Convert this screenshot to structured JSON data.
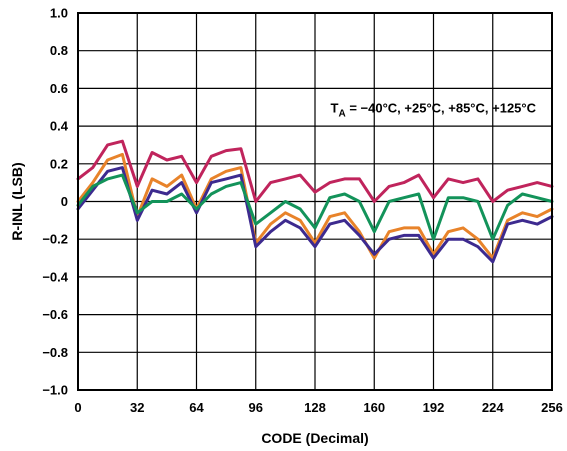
{
  "chart_data": {
    "type": "line",
    "title": "",
    "xlabel": "CODE (Decimal)",
    "ylabel": "R-INL (LSB)",
    "xlim": [
      0,
      256
    ],
    "ylim": [
      -1.0,
      1.0
    ],
    "xticks": [
      "0",
      "32",
      "64",
      "96",
      "128",
      "160",
      "192",
      "224",
      "256"
    ],
    "yticks": [
      "1.0",
      "0.8",
      "0.6",
      "0.4",
      "0.2",
      "0",
      "−0.2",
      "−0.4",
      "−0.6",
      "−0.8",
      "−1.0"
    ],
    "grid": true,
    "annotation": {
      "prefix": "T",
      "subscript": "A",
      "text": " = −40°C, +25°C, +85°C, +125°C"
    },
    "series": [
      {
        "color": "#c0245c",
        "x": [
          0,
          8,
          16,
          24,
          32,
          40,
          48,
          56,
          64,
          72,
          80,
          88,
          96,
          104,
          112,
          120,
          128,
          136,
          144,
          152,
          160,
          168,
          176,
          184,
          192,
          200,
          208,
          216,
          224,
          232,
          240,
          248,
          256
        ],
        "y": [
          0.12,
          0.18,
          0.3,
          0.32,
          0.08,
          0.26,
          0.22,
          0.24,
          0.1,
          0.24,
          0.27,
          0.28,
          0.0,
          0.1,
          0.12,
          0.14,
          0.05,
          0.1,
          0.12,
          0.12,
          0.0,
          0.08,
          0.1,
          0.14,
          0.02,
          0.12,
          0.1,
          0.12,
          0.0,
          0.06,
          0.08,
          0.1,
          0.08
        ]
      },
      {
        "color": "#e8832a",
        "x": [
          0,
          8,
          16,
          24,
          32,
          40,
          48,
          56,
          64,
          72,
          80,
          88,
          96,
          104,
          112,
          120,
          128,
          136,
          144,
          152,
          160,
          168,
          176,
          184,
          192,
          200,
          208,
          216,
          224,
          232,
          240,
          248,
          256
        ],
        "y": [
          0.0,
          0.1,
          0.22,
          0.25,
          -0.08,
          0.12,
          0.08,
          0.14,
          -0.04,
          0.12,
          0.16,
          0.18,
          -0.22,
          -0.12,
          -0.06,
          -0.1,
          -0.22,
          -0.08,
          -0.06,
          -0.16,
          -0.3,
          -0.16,
          -0.14,
          -0.14,
          -0.28,
          -0.16,
          -0.14,
          -0.2,
          -0.3,
          -0.1,
          -0.06,
          -0.08,
          -0.04
        ]
      },
      {
        "color": "#3d2a8f",
        "x": [
          0,
          8,
          16,
          24,
          32,
          40,
          48,
          56,
          64,
          72,
          80,
          88,
          96,
          104,
          112,
          120,
          128,
          136,
          144,
          152,
          160,
          168,
          176,
          184,
          192,
          200,
          208,
          216,
          224,
          232,
          240,
          248,
          256
        ],
        "y": [
          -0.04,
          0.06,
          0.16,
          0.18,
          -0.1,
          0.06,
          0.04,
          0.1,
          -0.06,
          0.1,
          0.12,
          0.14,
          -0.24,
          -0.16,
          -0.1,
          -0.14,
          -0.24,
          -0.12,
          -0.1,
          -0.18,
          -0.28,
          -0.2,
          -0.18,
          -0.18,
          -0.3,
          -0.2,
          -0.2,
          -0.24,
          -0.32,
          -0.12,
          -0.1,
          -0.12,
          -0.08
        ]
      },
      {
        "color": "#13935a",
        "x": [
          0,
          8,
          16,
          24,
          32,
          40,
          48,
          56,
          64,
          72,
          80,
          88,
          96,
          104,
          112,
          120,
          128,
          136,
          144,
          152,
          160,
          168,
          176,
          184,
          192,
          200,
          208,
          216,
          224,
          232,
          240,
          248,
          256
        ],
        "y": [
          -0.02,
          0.08,
          0.12,
          0.14,
          -0.06,
          0.0,
          0.0,
          0.04,
          -0.04,
          0.04,
          0.08,
          0.1,
          -0.12,
          -0.06,
          0.0,
          -0.04,
          -0.14,
          0.02,
          0.04,
          0.0,
          -0.16,
          0.0,
          0.02,
          0.04,
          -0.2,
          0.02,
          0.02,
          0.0,
          -0.2,
          -0.02,
          0.04,
          0.02,
          0.0
        ]
      }
    ]
  }
}
